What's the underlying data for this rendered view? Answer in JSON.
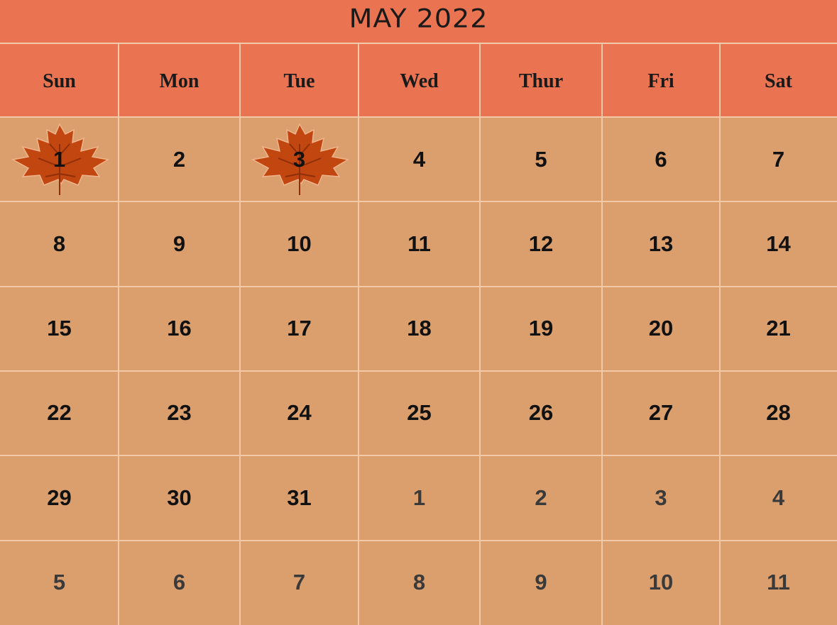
{
  "calendar": {
    "title": "MAY 2022",
    "weekdays": [
      "Sun",
      "Mon",
      "Tue",
      "Wed",
      "Thur",
      "Fri",
      "Sat"
    ],
    "weeks": [
      [
        {
          "day": "1",
          "leaf": true
        },
        {
          "day": "2"
        },
        {
          "day": "3",
          "leaf": true
        },
        {
          "day": "4"
        },
        {
          "day": "5"
        },
        {
          "day": "6"
        },
        {
          "day": "7"
        }
      ],
      [
        {
          "day": "8"
        },
        {
          "day": "9"
        },
        {
          "day": "10"
        },
        {
          "day": "11"
        },
        {
          "day": "12"
        },
        {
          "day": "13"
        },
        {
          "day": "14"
        }
      ],
      [
        {
          "day": "15"
        },
        {
          "day": "16"
        },
        {
          "day": "17"
        },
        {
          "day": "18"
        },
        {
          "day": "19"
        },
        {
          "day": "20"
        },
        {
          "day": "21"
        }
      ],
      [
        {
          "day": "22"
        },
        {
          "day": "23"
        },
        {
          "day": "24"
        },
        {
          "day": "25"
        },
        {
          "day": "26"
        },
        {
          "day": "27"
        },
        {
          "day": "28"
        }
      ],
      [
        {
          "day": "29"
        },
        {
          "day": "30"
        },
        {
          "day": "31"
        },
        {
          "day": "1",
          "other": true
        },
        {
          "day": "2",
          "other": true
        },
        {
          "day": "3",
          "other": true
        },
        {
          "day": "4",
          "other": true
        }
      ],
      [
        {
          "day": "5",
          "other": true
        },
        {
          "day": "6",
          "other": true
        },
        {
          "day": "7",
          "other": true
        },
        {
          "day": "8",
          "other": true
        },
        {
          "day": "9",
          "other": true
        },
        {
          "day": "10",
          "other": true
        },
        {
          "day": "11",
          "other": true
        }
      ]
    ]
  },
  "colors": {
    "header": "#EA7451",
    "cell": "#DB9F6D",
    "gridline": "#F4C9A8",
    "leaf": "#C2460F"
  },
  "icons": {
    "holiday_marker": "maple-leaf-icon"
  }
}
